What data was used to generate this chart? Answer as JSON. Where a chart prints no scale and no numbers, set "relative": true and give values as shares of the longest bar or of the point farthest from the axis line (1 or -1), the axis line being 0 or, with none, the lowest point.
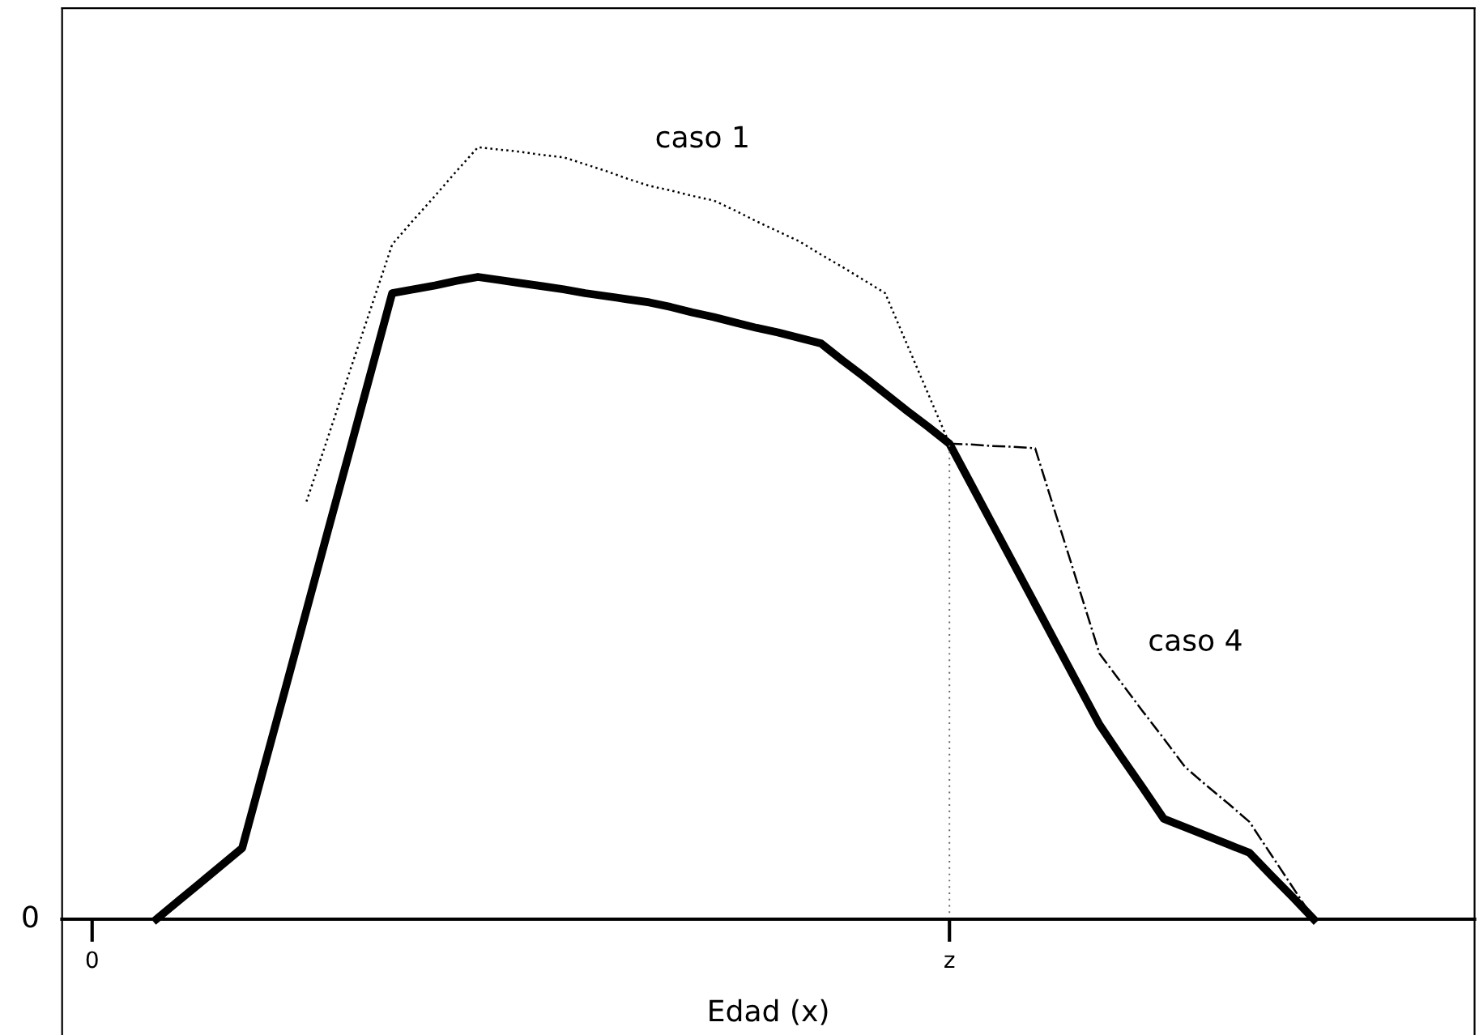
{
  "chart_data": {
    "type": "line",
    "relative": true,
    "xlabel": "Edad (x)",
    "annotations": [
      "0"
    ],
    "categories": [
      "0",
      null,
      null,
      null,
      null,
      null,
      null,
      null,
      null,
      null,
      null,
      null,
      null,
      null,
      null,
      null,
      null,
      null,
      null,
      null,
      null,
      null,
      null,
      null,
      null,
      null,
      null,
      null,
      null,
      null,
      null,
      null,
      null,
      null,
      null,
      null,
      null,
      null,
      null,
      null,
      "z",
      null,
      null,
      null,
      null,
      null,
      null,
      null,
      null,
      null,
      null,
      null,
      null,
      null,
      null,
      null,
      null,
      null,
      null,
      null,
      null,
      null,
      null,
      null,
      null
    ],
    "grid": false,
    "marker": "none",
    "ref_lines": [
      {
        "axis": "x",
        "value": "z",
        "line_style": "dotted",
        "color": "#666666"
      }
    ],
    "series": [
      {
        "color": "#000000",
        "line_style": "solid",
        "values": [
          null,
          null,
          null,
          0,
          0.023,
          0.046,
          0.069,
          0.092,
          0.195,
          0.297,
          0.4,
          0.503,
          0.605,
          0.708,
          0.811,
          0.816,
          0.821,
          0.827,
          0.832,
          0.828,
          0.824,
          0.82,
          0.816,
          0.811,
          0.807,
          0.803,
          0.799,
          0.793,
          0.786,
          0.78,
          0.773,
          0.766,
          0.76,
          0.753,
          0.746,
          0.724,
          0.703,
          0.681,
          0.659,
          0.638,
          0.616,
          0.564,
          0.512,
          0.46,
          0.408,
          0.356,
          0.304,
          0.252,
          0.211,
          0.171,
          0.13,
          0.119,
          0.108,
          0.097,
          0.086,
          0.057,
          0.029,
          0,
          null,
          null,
          null,
          null,
          null,
          null,
          null
        ]
      },
      {
        "name": "caso 1",
        "color": "#000000",
        "line_style": "dotted",
        "values": [
          null,
          null,
          null,
          null,
          null,
          null,
          null,
          null,
          null,
          null,
          0.541,
          0.624,
          0.708,
          0.791,
          0.874,
          0.906,
          0.937,
          0.969,
          1.0,
          0.997,
          0.994,
          0.99,
          0.987,
          0.978,
          0.969,
          0.959,
          0.95,
          0.944,
          0.937,
          0.931,
          0.918,
          0.904,
          0.891,
          0.878,
          0.861,
          0.845,
          0.828,
          0.811,
          0.746,
          0.681,
          0.616,
          null,
          null,
          null,
          null,
          null,
          null,
          null,
          null,
          null,
          null,
          null,
          null,
          null,
          null,
          null,
          null,
          null,
          null,
          null,
          null,
          null,
          null,
          null,
          null
        ]
      },
      {
        "name": "caso 4",
        "color": "#000000",
        "line_style": "dashdot",
        "values": [
          null,
          null,
          null,
          null,
          null,
          null,
          null,
          null,
          null,
          null,
          null,
          null,
          null,
          null,
          null,
          null,
          null,
          null,
          null,
          null,
          null,
          null,
          null,
          null,
          null,
          null,
          null,
          null,
          null,
          null,
          null,
          null,
          null,
          null,
          null,
          null,
          null,
          null,
          null,
          null,
          0.616,
          0.615,
          0.613,
          0.612,
          0.61,
          0.521,
          0.433,
          0.344,
          0.307,
          0.27,
          0.234,
          0.197,
          0.173,
          0.15,
          0.126,
          0.084,
          0.042,
          0,
          null,
          null,
          null,
          null,
          null,
          null,
          null
        ]
      }
    ]
  }
}
